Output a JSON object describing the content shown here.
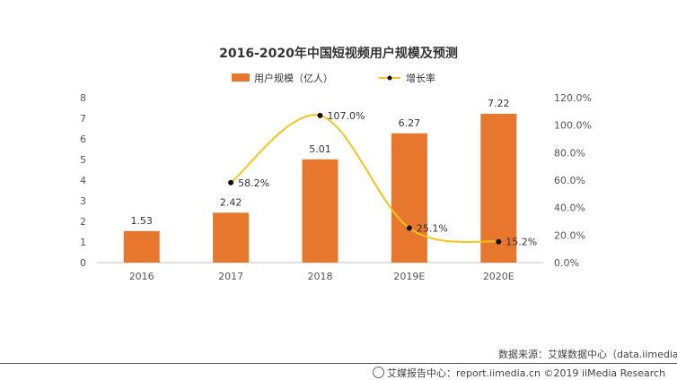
{
  "chart_data": {
    "type": "bar",
    "title": "2016-2020年中国短视频用户规模及预测",
    "categories": [
      "2016",
      "2017",
      "2018",
      "2019E",
      "2020E"
    ],
    "series": [
      {
        "name": "用户规模（亿人）",
        "type": "bar",
        "axis": "left",
        "values": [
          1.53,
          2.42,
          5.01,
          6.27,
          7.22
        ],
        "labels": [
          "1.53",
          "2.42",
          "5.01",
          "6.27",
          "7.22"
        ],
        "color": "#E8772E"
      },
      {
        "name": "增长率",
        "type": "line",
        "axis": "right",
        "values": [
          null,
          58.2,
          107.0,
          25.1,
          15.2
        ],
        "labels": [
          "",
          "58.2%",
          "107.0%",
          "25.1%",
          "15.2%"
        ],
        "color": "#F5C518"
      }
    ],
    "ylim_left": [
      0,
      8
    ],
    "yticks_left": [
      "0",
      "1",
      "2",
      "3",
      "4",
      "5",
      "6",
      "7",
      "8"
    ],
    "ylim_right": [
      0,
      120
    ],
    "yticks_right": [
      "0.0%",
      "20.0%",
      "40.0%",
      "60.0%",
      "80.0%",
      "100.0%",
      "120.0%"
    ],
    "legend_position": "top-center",
    "grid": false
  },
  "footer": {
    "source": "数据来源：艾媒数据中心（data.iimedia",
    "report": "艾媒报告中心：report.iimedia.cn  ©2019  iiMedia Research"
  }
}
